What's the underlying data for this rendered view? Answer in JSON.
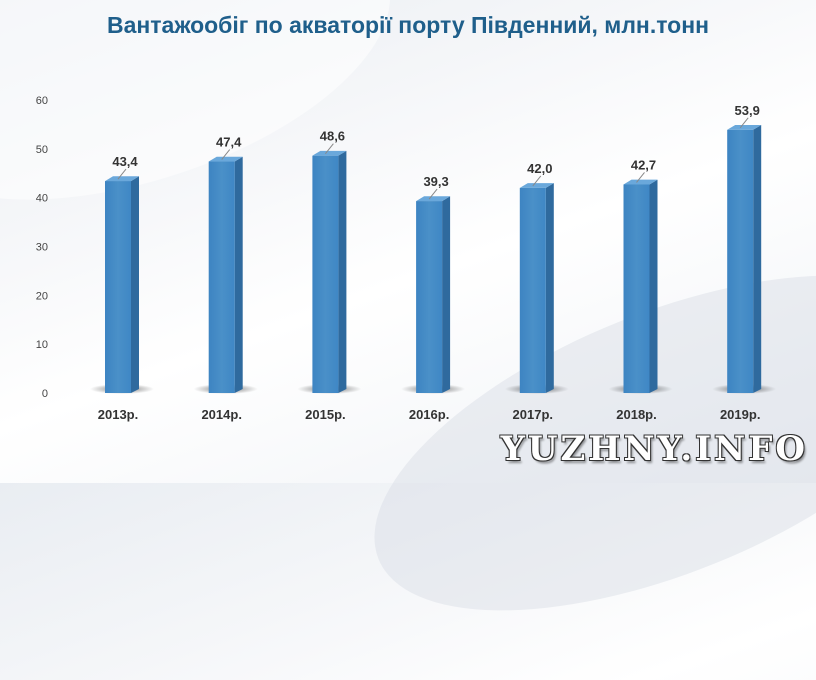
{
  "chart_data": {
    "type": "bar",
    "title": "Вантажообіг по акваторії порту Південний, млн.тонн",
    "categories": [
      "2013р.",
      "2014р.",
      "2015р.",
      "2016р.",
      "2017р.",
      "2018р.",
      "2019р."
    ],
    "values": [
      43.4,
      47.4,
      48.6,
      39.3,
      42.0,
      42.7,
      53.9
    ],
    "value_labels": [
      "43,4",
      "47,4",
      "48,6",
      "39,3",
      "42,0",
      "42,7",
      "53,9"
    ],
    "y_ticks": [
      "0",
      "10",
      "20",
      "30",
      "40",
      "50",
      "60"
    ],
    "ylim": [
      0,
      60
    ],
    "xlabel": "",
    "ylabel": "",
    "grid": false,
    "bar_color": "#4a90c8"
  },
  "watermark": "YUZHNY.INFO"
}
